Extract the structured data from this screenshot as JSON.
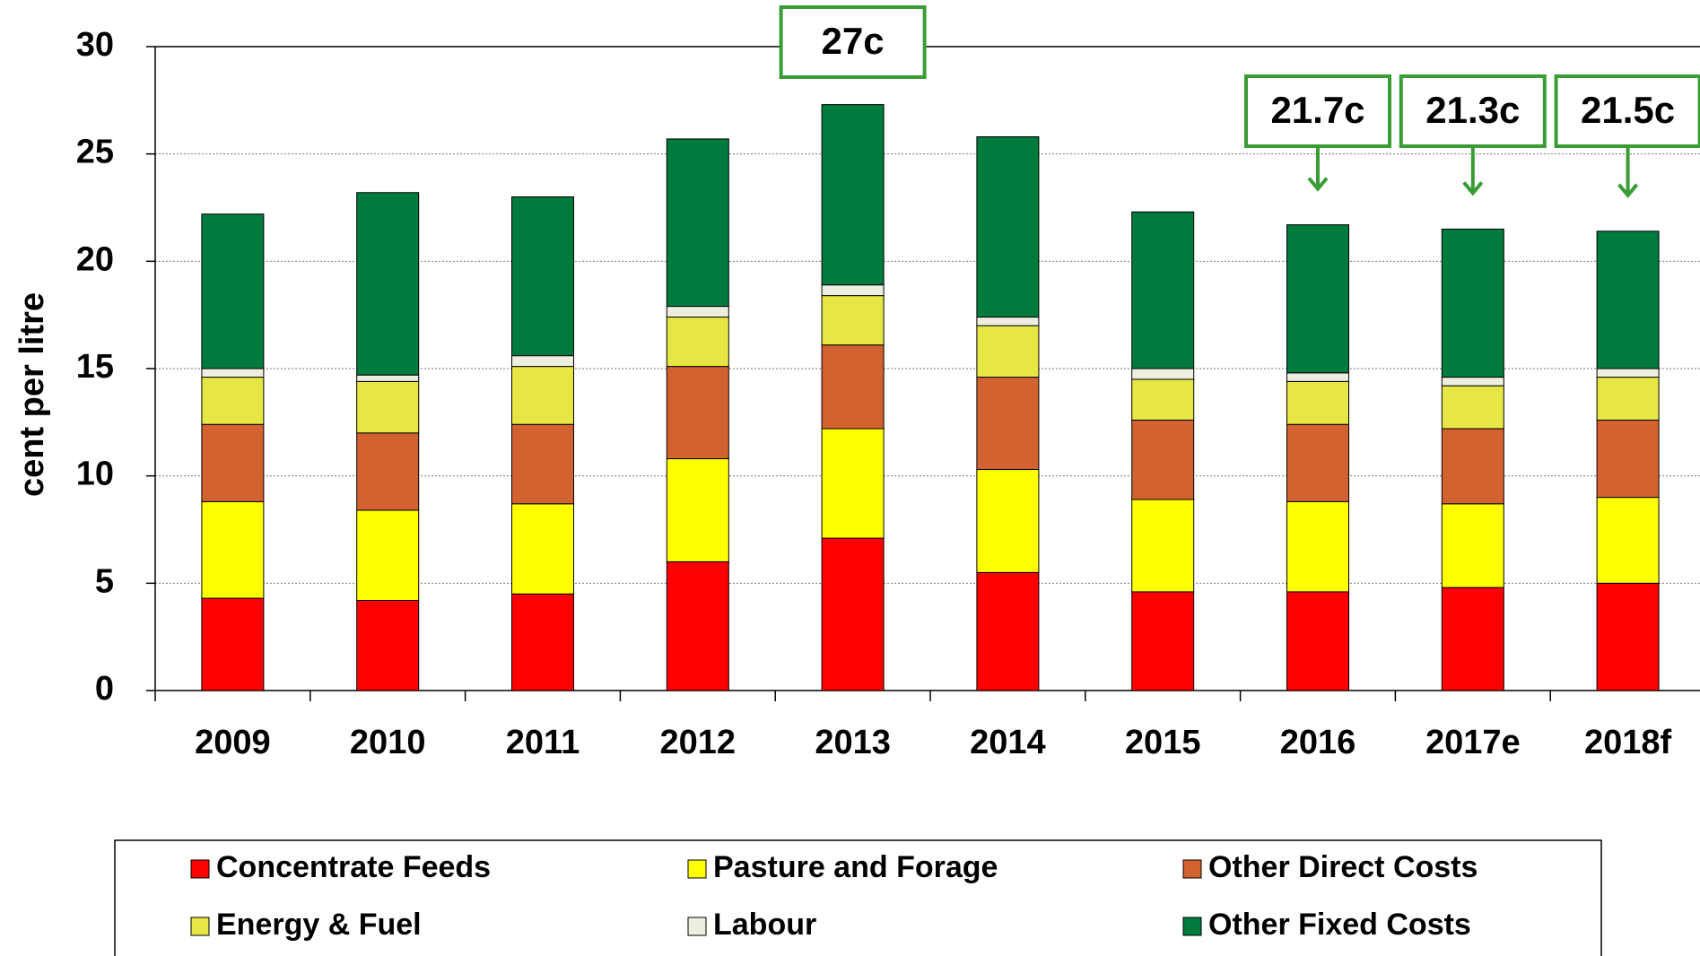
{
  "chart_data": {
    "type": "stacked_bar",
    "y_label": "cent per litre",
    "categories": [
      "2009",
      "2010",
      "2011",
      "2012",
      "2013",
      "2014",
      "2015",
      "2016",
      "2017e",
      "2018f"
    ],
    "series": [
      {
        "name": "Concentrate Feeds",
        "color": "#ff0000",
        "values": [
          4.3,
          4.2,
          4.5,
          6.0,
          7.1,
          5.5,
          4.6,
          4.6,
          4.8,
          5.0
        ]
      },
      {
        "name": "Pasture and Forage",
        "color": "#ffff00",
        "values": [
          4.5,
          4.2,
          4.2,
          4.8,
          5.1,
          4.8,
          4.3,
          4.2,
          3.9,
          4.0
        ]
      },
      {
        "name": "Other Direct Costs",
        "color": "#d2622f",
        "values": [
          3.6,
          3.6,
          3.7,
          4.3,
          3.9,
          4.3,
          3.7,
          3.6,
          3.5,
          3.6
        ]
      },
      {
        "name": "Energy & Fuel",
        "color": "#e6e645",
        "values": [
          2.2,
          2.4,
          2.7,
          2.3,
          2.3,
          2.4,
          1.9,
          2.0,
          2.0,
          2.0
        ]
      },
      {
        "name": "Labour",
        "color": "#eeeee0",
        "values": [
          0.4,
          0.3,
          0.5,
          0.5,
          0.5,
          0.4,
          0.5,
          0.4,
          0.4,
          0.4
        ]
      },
      {
        "name": "Other Fixed Costs",
        "color": "#007a3d",
        "values": [
          7.2,
          8.5,
          7.4,
          7.8,
          8.4,
          8.4,
          7.3,
          6.9,
          6.9,
          6.4
        ]
      }
    ],
    "ylim": [
      0,
      30
    ],
    "yticks": [
      0,
      5,
      10,
      15,
      20,
      25,
      30
    ],
    "grid": true,
    "legend": "bottom",
    "annotations": [
      {
        "text": "27c",
        "category": "2013",
        "arrow": false
      },
      {
        "text": "21.7c",
        "category": "2016",
        "arrow": true
      },
      {
        "text": "21.3c",
        "category": "2017e",
        "arrow": true
      },
      {
        "text": "21.5c",
        "category": "2018f",
        "arrow": true
      }
    ],
    "annotation_color": "#3a9c35"
  }
}
